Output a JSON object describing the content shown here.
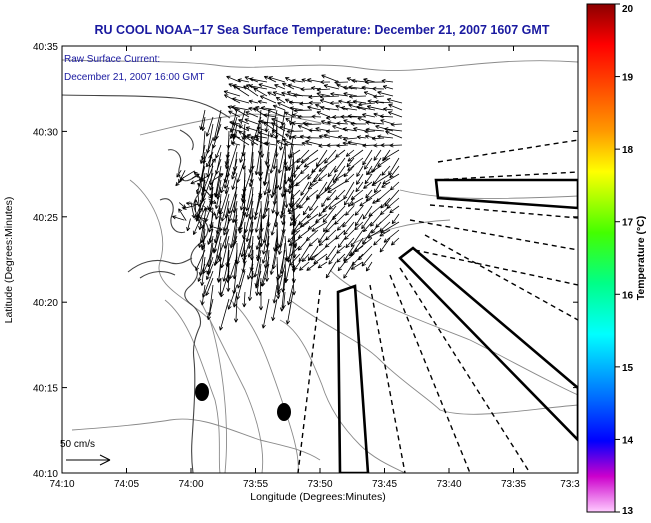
{
  "title": "RU COOL  NOAA−17  Sea Surface Temperature:  December 21, 2007 1607 GMT",
  "annotation": {
    "line1": "Raw Surface Current:",
    "line2": "December 21, 2007 16:00 GMT"
  },
  "scale": {
    "label": "50 cm/s"
  },
  "axes": {
    "xlabel": "Longitude (Degrees:Minutes)",
    "ylabel": "Latitude (Degrees:Minutes)",
    "x_ticks": [
      "74:10",
      "74:05",
      "74:00",
      "73:55",
      "73:50",
      "73:45",
      "73:40",
      "73:35",
      "73:3"
    ],
    "y_ticks": [
      "40:35",
      "40:30",
      "40:25",
      "40:20",
      "40:15",
      "40:10"
    ]
  },
  "colorbar": {
    "label": "Temperature (°C)",
    "ticks": [
      "20",
      "19",
      "18",
      "17",
      "16",
      "15",
      "14",
      "13"
    ]
  },
  "colors": {
    "title": "#1a1aa0",
    "annotation": "#1a1aa0",
    "frame": "#000000",
    "coast": "#444444",
    "contour": "#8a8a8a"
  }
}
